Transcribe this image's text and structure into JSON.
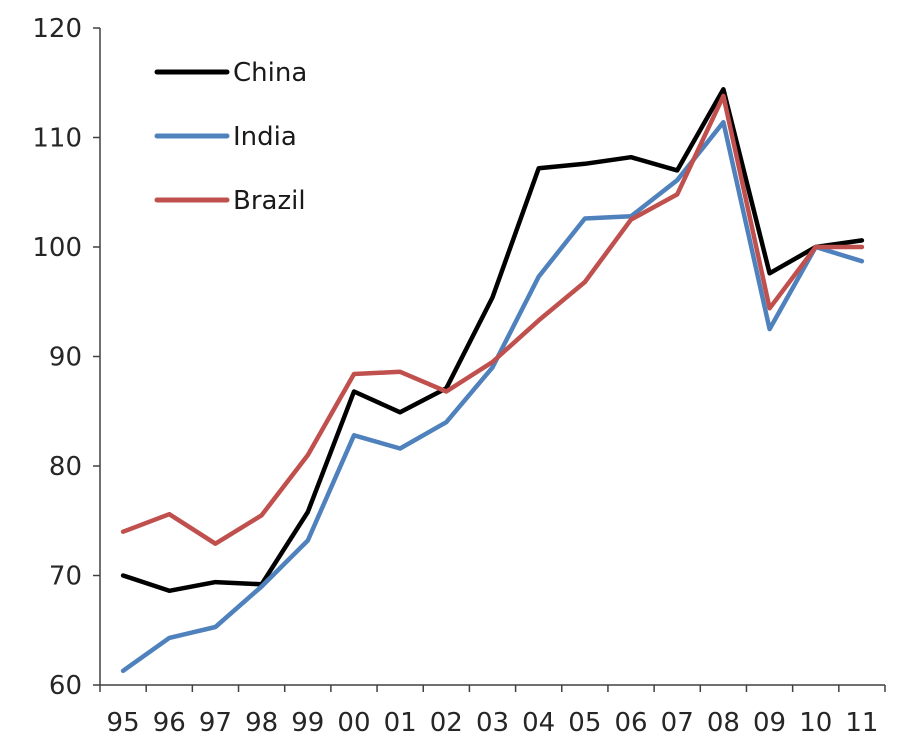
{
  "chart_data": {
    "type": "line",
    "title": "",
    "xlabel": "",
    "ylabel": "",
    "categories": [
      "95",
      "96",
      "97",
      "98",
      "99",
      "00",
      "01",
      "02",
      "03",
      "04",
      "05",
      "06",
      "07",
      "08",
      "09",
      "10",
      "11"
    ],
    "ylim": [
      60,
      120
    ],
    "yticks": [
      60,
      70,
      80,
      90,
      100,
      110,
      120
    ],
    "grid": false,
    "legend_position": "top-left",
    "series": [
      {
        "name": "China",
        "color": "#000000",
        "values": [
          70.0,
          68.6,
          69.4,
          69.2,
          75.8,
          86.8,
          84.9,
          87.1,
          95.4,
          107.2,
          107.6,
          108.2,
          107.0,
          114.4,
          97.6,
          100.0,
          100.6
        ]
      },
      {
        "name": "India",
        "color": "#4f81bd",
        "values": [
          61.3,
          64.3,
          65.3,
          69.0,
          73.2,
          82.8,
          81.6,
          84.0,
          89.0,
          97.3,
          102.6,
          102.8,
          106.1,
          111.4,
          92.5,
          100.0,
          98.7
        ]
      },
      {
        "name": "Brazil",
        "color": "#c0504d",
        "values": [
          74.0,
          75.6,
          72.9,
          75.5,
          81.0,
          88.4,
          88.6,
          86.8,
          89.5,
          93.3,
          96.8,
          102.5,
          104.8,
          113.8,
          94.4,
          100.0,
          100.0
        ]
      }
    ]
  }
}
